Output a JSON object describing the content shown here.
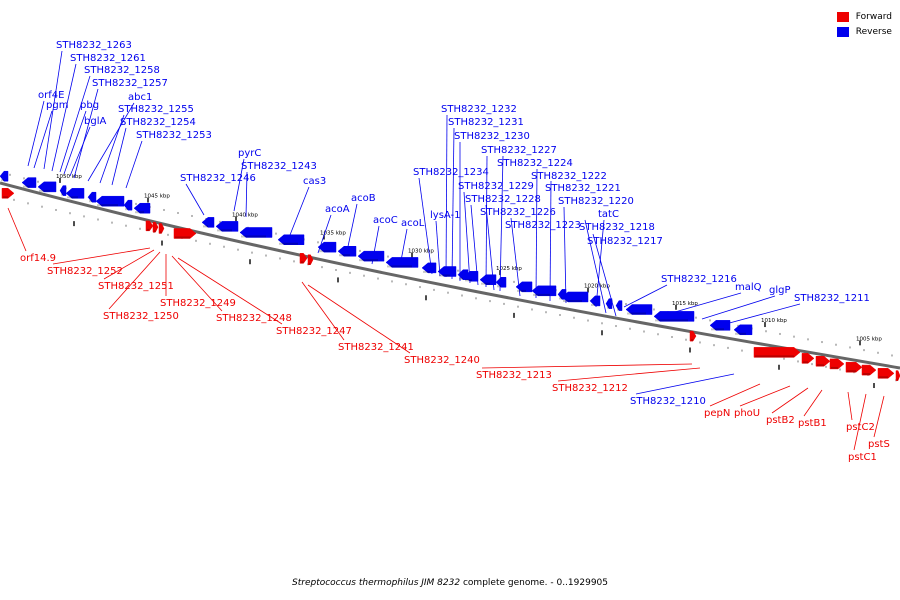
{
  "legend": {
    "forward_label": "Forward",
    "reverse_label": "Reverse",
    "forward_color": "#ee0000",
    "reverse_color": "#0000ee"
  },
  "caption": {
    "organism": "Streptococcus thermophilus JIM 8232",
    "rest": "complete genome. - 0..1929905"
  },
  "axis_ticks": [
    "1050 kbp",
    "1045 kbp",
    "1040 kbp",
    "1035 kbp",
    "1030 kbp",
    "1025 kbp",
    "1020 kbp",
    "1015 kbp",
    "1010 kbp",
    "1005 kbp"
  ],
  "reverse_genes": [
    "orf4E",
    "pgm",
    "STH8232_1263",
    "STH8232_1261",
    "STH8232_1258",
    "pbg",
    "bglA",
    "STH8232_1257",
    "abc1",
    "STH8232_1255",
    "STH8232_1254",
    "STH8232_1253",
    "STH8232_1246",
    "pyrC",
    "STH8232_1243",
    "cas3",
    "acoA",
    "acoB",
    "acoC",
    "acoL",
    "STH8232_1234",
    "lysA-1",
    "STH8232_1232",
    "STH8232_1231",
    "STH8232_1230",
    "STH8232_1229",
    "STH8232_1228",
    "STH8232_1227",
    "STH8232_1226",
    "STH8232_1224",
    "STH8232_1223",
    "STH8232_1222",
    "STH8232_1221",
    "STH8232_1220",
    "tatC",
    "STH8232_1218",
    "STH8232_1217",
    "STH8232_1216",
    "malQ",
    "glgP",
    "STH8232_1211",
    "STH8232_1210"
  ],
  "forward_genes": [
    "orf14.9",
    "STH8232_1252",
    "STH8232_1251",
    "STH8232_1250",
    "STH8232_1249",
    "STH8232_1248",
    "STH8232_1247",
    "STH8232_1241",
    "STH8232_1240",
    "STH8232_1213",
    "STH8232_1212",
    "pepN",
    "phoU",
    "pstB2",
    "pstB1",
    "pstC2",
    "pstC1",
    "pstS"
  ]
}
